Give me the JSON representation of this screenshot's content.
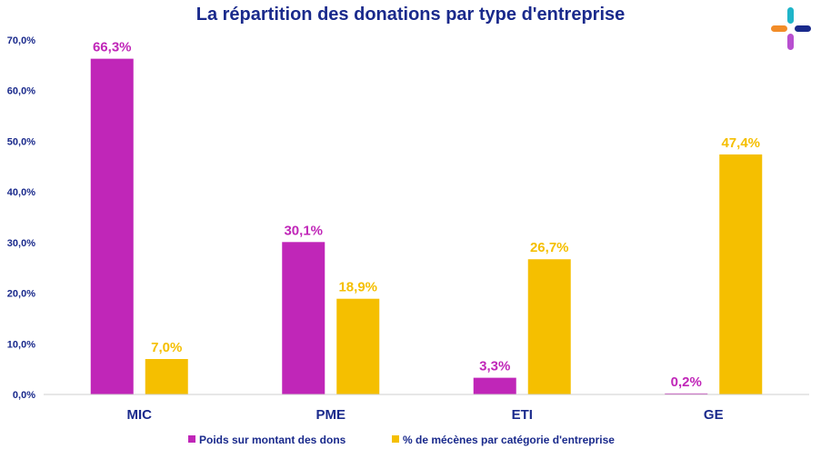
{
  "chart_data": {
    "type": "bar",
    "title": "La répartition des donations par type d'entreprise",
    "categories": [
      "MIC",
      "PME",
      "ETI",
      "GE"
    ],
    "series": [
      {
        "name": "Poids sur montant des dons",
        "color": "#c026b8",
        "values": [
          66.3,
          30.1,
          3.3,
          0.2
        ],
        "labels": [
          "66,3%",
          "30,1%",
          "3,3%",
          "0,2%"
        ]
      },
      {
        "name": "% de mécènes par catégorie d'entreprise",
        "color": "#f5bf00",
        "values": [
          7.0,
          18.9,
          26.7,
          47.4
        ],
        "labels": [
          "7,0%",
          "18,9%",
          "26,7%",
          "47,4%"
        ]
      }
    ],
    "ylim": [
      0,
      70
    ],
    "yticks": [
      0,
      10,
      20,
      30,
      40,
      50,
      60,
      70
    ],
    "ytick_labels": [
      "0,0%",
      "10,0%",
      "20,0%",
      "30,0%",
      "40,0%",
      "50,0%",
      "60,0%",
      "70,0%"
    ],
    "xlabel": "",
    "ylabel": "",
    "legend_position": "bottom"
  },
  "logo": {
    "name": "plus-logo",
    "colors": [
      "#1fb5c9",
      "#f28c28",
      "#1a2a8c",
      "#b84fd0"
    ]
  }
}
